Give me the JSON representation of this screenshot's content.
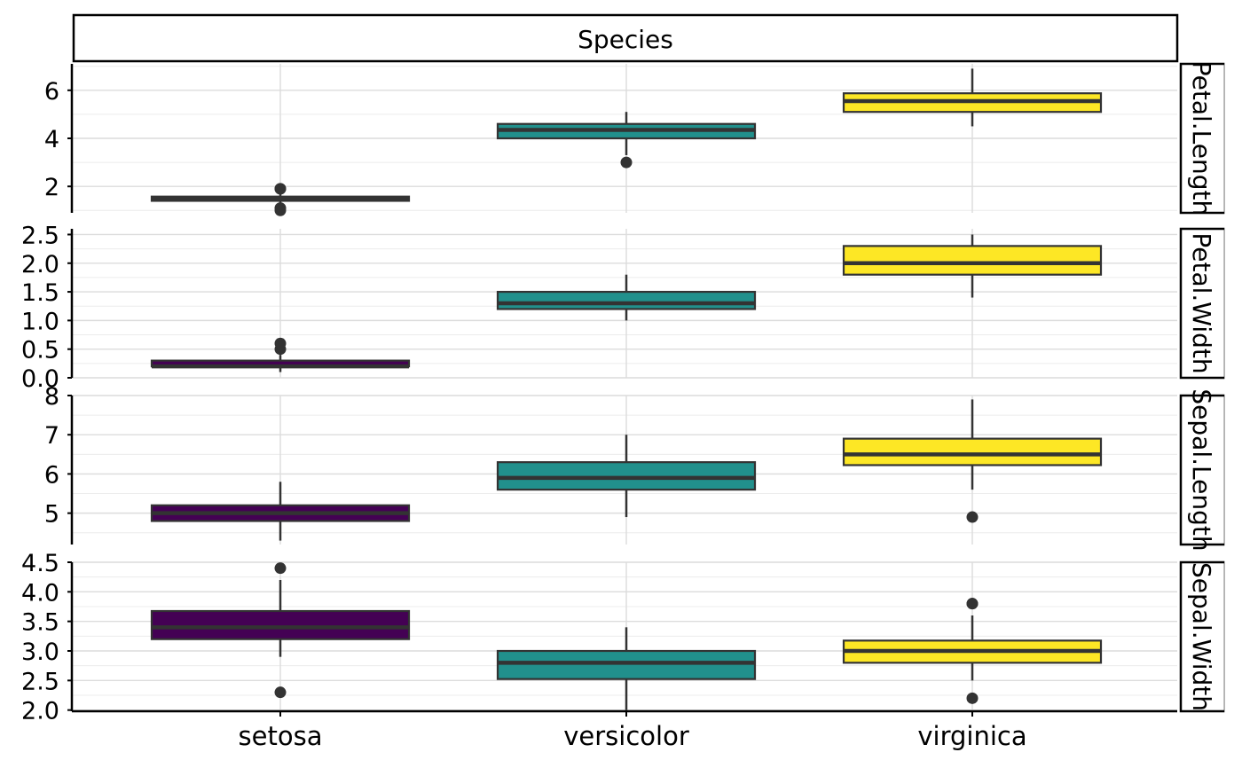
{
  "chart_data": {
    "type": "box",
    "title": "",
    "strip_title": "Species",
    "categories": [
      "setosa",
      "versicolor",
      "virginica"
    ],
    "fill_colors": [
      "#440154",
      "#21908C",
      "#FDE725"
    ],
    "grid": true,
    "legend": "none",
    "panels": [
      {
        "strip_label": "Petal.Length",
        "ylim": [
          0.9,
          7.1
        ],
        "yticks": [
          2,
          4,
          6
        ],
        "ytick_labels": [
          "2",
          "4",
          "6"
        ],
        "minor_ticks": [
          1,
          3,
          5,
          7
        ],
        "boxes": [
          {
            "category": "setosa",
            "q1": 1.4,
            "median": 1.5,
            "q3": 1.575,
            "lower": 1.2,
            "upper": 1.7,
            "outliers": [
              1.9,
              1.9,
              1.1,
              1.0
            ]
          },
          {
            "category": "versicolor",
            "q1": 4.0,
            "median": 4.35,
            "q3": 4.6,
            "lower": 3.3,
            "upper": 5.1,
            "outliers": [
              3.0
            ]
          },
          {
            "category": "virginica",
            "q1": 5.1,
            "median": 5.55,
            "q3": 5.875,
            "lower": 4.5,
            "upper": 6.9,
            "outliers": []
          }
        ]
      },
      {
        "strip_label": "Petal.Width",
        "ylim": [
          0.0,
          2.6
        ],
        "yticks": [
          0.0,
          0.5,
          1.0,
          1.5,
          2.0,
          2.5
        ],
        "ytick_labels": [
          "0.0",
          "0.5",
          "1.0",
          "1.5",
          "2.0",
          "2.5"
        ],
        "minor_ticks": [
          0.25,
          0.75,
          1.25,
          1.75,
          2.25
        ],
        "boxes": [
          {
            "category": "setosa",
            "q1": 0.2,
            "median": 0.2,
            "q3": 0.3,
            "lower": 0.1,
            "upper": 0.4,
            "outliers": [
              0.5,
              0.6
            ]
          },
          {
            "category": "versicolor",
            "q1": 1.2,
            "median": 1.3,
            "q3": 1.5,
            "lower": 1.0,
            "upper": 1.8,
            "outliers": []
          },
          {
            "category": "virginica",
            "q1": 1.8,
            "median": 2.0,
            "q3": 2.3,
            "lower": 1.4,
            "upper": 2.5,
            "outliers": []
          }
        ]
      },
      {
        "strip_label": "Sepal.Length",
        "ylim": [
          4.2,
          8.0
        ],
        "yticks": [
          5,
          6,
          7,
          8
        ],
        "ytick_labels": [
          "5",
          "6",
          "7",
          "8"
        ],
        "minor_ticks": [
          4.5,
          5.5,
          6.5,
          7.5
        ],
        "boxes": [
          {
            "category": "setosa",
            "q1": 4.8,
            "median": 5.0,
            "q3": 5.2,
            "lower": 4.3,
            "upper": 5.8,
            "outliers": []
          },
          {
            "category": "versicolor",
            "q1": 5.6,
            "median": 5.9,
            "q3": 6.3,
            "lower": 4.9,
            "upper": 7.0,
            "outliers": []
          },
          {
            "category": "virginica",
            "q1": 6.225,
            "median": 6.5,
            "q3": 6.9,
            "lower": 5.6,
            "upper": 7.9,
            "outliers": [
              4.9
            ]
          }
        ]
      },
      {
        "strip_label": "Sepal.Width",
        "ylim": [
          1.98,
          4.5
        ],
        "yticks": [
          2.0,
          2.5,
          3.0,
          3.5,
          4.0,
          4.5
        ],
        "ytick_labels": [
          "2.0",
          "2.5",
          "3.0",
          "3.5",
          "4.0",
          "4.5"
        ],
        "minor_ticks": [
          2.25,
          2.75,
          3.25,
          3.75,
          4.25
        ],
        "boxes": [
          {
            "category": "setosa",
            "q1": 3.2,
            "median": 3.4,
            "q3": 3.675,
            "lower": 2.9,
            "upper": 4.2,
            "outliers": [
              4.4,
              2.3
            ]
          },
          {
            "category": "versicolor",
            "q1": 2.525,
            "median": 2.8,
            "q3": 3.0,
            "lower": 2.0,
            "upper": 3.4,
            "outliers": []
          },
          {
            "category": "virginica",
            "q1": 2.8,
            "median": 3.0,
            "q3": 3.175,
            "lower": 2.5,
            "upper": 3.6,
            "outliers": [
              3.8,
              3.8,
              2.2
            ]
          }
        ]
      }
    ]
  }
}
